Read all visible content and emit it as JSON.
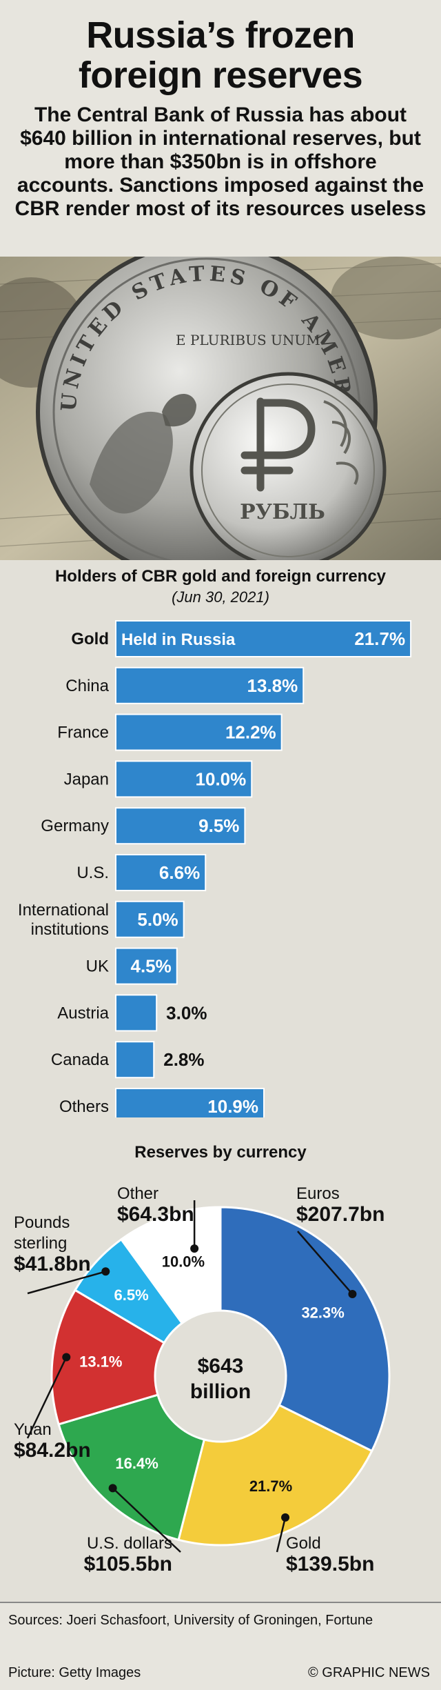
{
  "header": {
    "title_line1": "Russia’s frozen",
    "title_line2": "foreign reserves",
    "subtitle": "The Central Bank of Russia has about $640 billion in international reserves, but more than $350bn is in offshore accounts. Sanctions imposed against the CBR render most of its resources useless"
  },
  "photo": {
    "coin_top_text": "UNITED STATES OF AMERICA",
    "coin_motto": "E PLURIBUS UNUM",
    "ruble_text": "РУБЛЬ"
  },
  "chart_data": [
    {
      "type": "bar",
      "orientation": "horizontal",
      "title": "Holders of CBR gold and foreign currency",
      "subtitle": "(Jun 30, 2021)",
      "categories": [
        "Gold",
        "China",
        "France",
        "Japan",
        "Germany",
        "U.S.",
        "International institutions",
        "UK",
        "Austria",
        "Canada",
        "Others"
      ],
      "category_lines": [
        [
          "Gold"
        ],
        [
          "China"
        ],
        [
          "France"
        ],
        [
          "Japan"
        ],
        [
          "Germany"
        ],
        [
          "U.S."
        ],
        [
          "International",
          "institutions"
        ],
        [
          "UK"
        ],
        [
          "Austria"
        ],
        [
          "Canada"
        ],
        [
          "Others"
        ]
      ],
      "values": [
        21.7,
        13.8,
        12.2,
        10.0,
        9.5,
        6.6,
        5.0,
        4.5,
        3.0,
        2.8,
        10.9
      ],
      "value_labels": [
        "21.7%",
        "13.8%",
        "12.2%",
        "10.0%",
        "9.5%",
        "6.6%",
        "5.0%",
        "4.5%",
        "3.0%",
        "2.8%",
        "10.9%"
      ],
      "annotations": [
        {
          "category": "Gold",
          "text": "Held in Russia"
        }
      ],
      "bar_color": "#2f86cc",
      "xlim": [
        0,
        22
      ]
    },
    {
      "type": "pie",
      "donut": true,
      "title": "Reserves by currency",
      "center_label_line1": "$643",
      "center_label_line2": "billion",
      "slices": [
        {
          "name": "Euros",
          "amount": "$207.7bn",
          "percent": 32.3,
          "percent_label": "32.3%",
          "color": "#2f6dbb"
        },
        {
          "name": "Gold",
          "amount": "$139.5bn",
          "percent": 21.7,
          "percent_label": "21.7%",
          "color": "#f4cc3b"
        },
        {
          "name": "U.S. dollars",
          "amount": "$105.5bn",
          "percent": 16.4,
          "percent_label": "16.4%",
          "color": "#2ea84f"
        },
        {
          "name": "Yuan",
          "amount": "$84.2bn",
          "percent": 13.1,
          "percent_label": "13.1%",
          "color": "#d23131"
        },
        {
          "name": "Pounds sterling",
          "name_lines": [
            "Pounds",
            "sterling"
          ],
          "amount": "$41.8bn",
          "percent": 6.5,
          "percent_label": "6.5%",
          "color": "#27b2ea"
        },
        {
          "name": "Other",
          "amount": "$64.3bn",
          "percent": 10.0,
          "percent_label": "10.0%",
          "color": "#ffffff"
        }
      ]
    }
  ],
  "footer": {
    "sources": "Sources: Joeri Schasfoort, University of Groningen, Fortune",
    "picture": "Picture: Getty Images",
    "credit": "© GRAPHIC NEWS"
  }
}
